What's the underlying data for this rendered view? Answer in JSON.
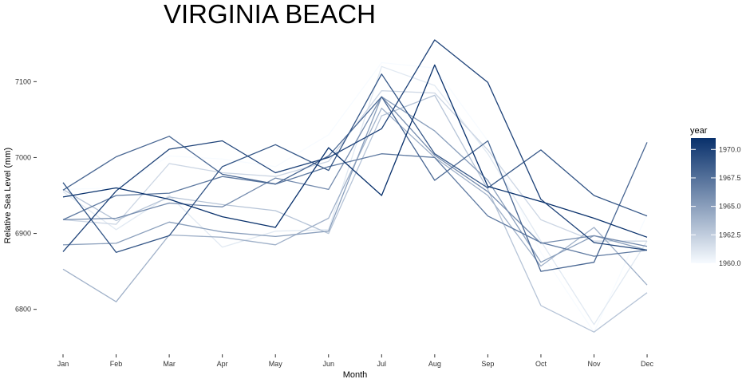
{
  "chart_data": {
    "type": "line",
    "title": "VIRGINIA BEACH",
    "xlabel": "Month",
    "ylabel": "Relative Sea Level (mm)",
    "categories": [
      "Jan",
      "Feb",
      "Mar",
      "Apr",
      "May",
      "Jun",
      "Jul",
      "Aug",
      "Sep",
      "Oct",
      "Nov",
      "Dec"
    ],
    "ylim": [
      6745,
      7155
    ],
    "yticks": [
      6800,
      6900,
      7000,
      7100
    ],
    "ytick_labels": [
      "6800",
      "6900",
      "7000",
      "7100"
    ],
    "grid": false,
    "legend": {
      "title": "year",
      "type": "colorbar",
      "placement": "right",
      "range": [
        1960,
        1971
      ],
      "ticks": [
        1960,
        1962.5,
        1965,
        1967.5,
        1970
      ],
      "tick_labels": [
        "1960.0",
        "1962.5",
        "1965.0",
        "1967.5",
        "1970.0"
      ],
      "low_color": "#f7fbff",
      "high_color": "#08306b"
    },
    "series": [
      {
        "year": 1960,
        "values": [
          6958,
          6960,
          7002,
          6998,
          6988,
          7030,
          7125,
          7118,
          7022,
          6875,
          6770,
          6925
        ]
      },
      {
        "year": 1961,
        "values": [
          6955,
          6905,
          6950,
          6882,
          6903,
          6905,
          7120,
          7095,
          7005,
          6890,
          6780,
          6890
        ]
      },
      {
        "year": 1962,
        "values": [
          6918,
          6912,
          6992,
          6980,
          6975,
          6995,
          7088,
          7085,
          7010,
          6918,
          6890,
          6890
        ]
      },
      {
        "year": 1963,
        "values": [
          6958,
          6917,
          6948,
          6938,
          6930,
          6900,
          7055,
          7082,
          6958,
          6805,
          6770,
          6822
        ]
      },
      {
        "year": 1964,
        "values": [
          6853,
          6810,
          6898,
          6895,
          6885,
          6920,
          7065,
          7000,
          6950,
          6857,
          6908,
          6832
        ]
      },
      {
        "year": 1965,
        "values": [
          6885,
          6887,
          6915,
          6902,
          6896,
          6903,
          7080,
          7035,
          6970,
          6862,
          6897,
          6878
        ]
      },
      {
        "year": 1966,
        "values": [
          6918,
          6920,
          6940,
          6935,
          6973,
          6958,
          7080,
          7003,
          6955,
          6887,
          6897,
          6883
        ]
      },
      {
        "year": 1967,
        "values": [
          6918,
          6950,
          6953,
          6975,
          6965,
          6988,
          7005,
          7000,
          6923,
          6888,
          6870,
          6878
        ]
      },
      {
        "year": 1968,
        "values": [
          6957,
          7001,
          7028,
          6978,
          6965,
          7002,
          7080,
          6970,
          7022,
          6850,
          6862,
          7020
        ]
      },
      {
        "year": 1969,
        "values": [
          6967,
          6875,
          6897,
          6988,
          7017,
          6983,
          7110,
          7005,
          6960,
          7010,
          6950,
          6923
        ]
      },
      {
        "year": 1970,
        "values": [
          6876,
          6956,
          7011,
          7022,
          6980,
          7000,
          7038,
          7155,
          7099,
          6945,
          6888,
          6878
        ]
      },
      {
        "year": 1971,
        "values": [
          6948,
          6960,
          6945,
          6922,
          6908,
          7013,
          6950,
          7122,
          6962,
          6942,
          6920,
          6895
        ]
      }
    ]
  }
}
